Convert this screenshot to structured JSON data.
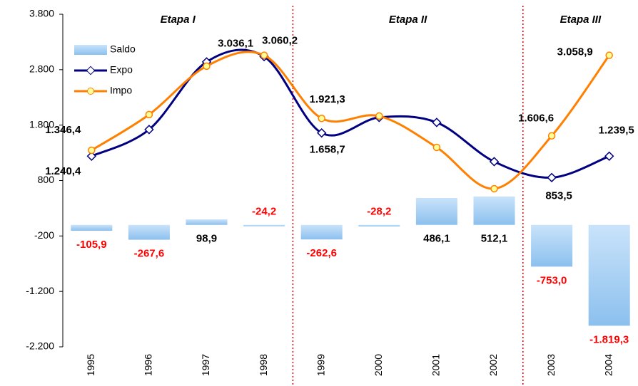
{
  "chart_data": {
    "type": "combo",
    "categories": [
      "1995",
      "1996",
      "1997",
      "1998",
      "1999",
      "2000",
      "2001",
      "2002",
      "2003",
      "2004"
    ],
    "ylim": [
      -2200,
      3800
    ],
    "yticks": [
      {
        "value": 3800,
        "label": "3.800"
      },
      {
        "value": 2800,
        "label": "2.800"
      },
      {
        "value": 1800,
        "label": "1.800"
      },
      800,
      -200,
      {
        "value": -1200,
        "label": "-1.200"
      },
      {
        "value": -2200,
        "label": "-2.200"
      }
    ],
    "legend": "upper left",
    "annotations": [
      "Etapa I",
      "Etapa II",
      "Etapa III"
    ],
    "series": [
      {
        "name": "Saldo",
        "type": "bar",
        "color": "#a8d0f4",
        "values": [
          -105.9,
          -267.6,
          98.9,
          -24.2,
          -262.6,
          -28.2,
          486.1,
          512.1,
          -753.0,
          -1819.3
        ],
        "value_labels": [
          "-105,9",
          "-267,6",
          "98,9",
          "-24,2",
          "-262,6",
          "-28,2",
          "486,1",
          "512,1",
          "-753,0",
          "-1.819,3"
        ]
      },
      {
        "name": "Expo",
        "type": "line",
        "color": "#000080",
        "values": [
          1240.4,
          1720,
          2940,
          3036.1,
          1658.7,
          1938,
          1848,
          1141,
          853.5,
          1239.5
        ],
        "value_labels": [
          "1.240,4",
          null,
          null,
          "3.036,1",
          "1.658,7",
          null,
          null,
          null,
          "853,5",
          "1.239,5"
        ]
      },
      {
        "name": "Impo",
        "type": "line",
        "color": "#ff8000",
        "values": [
          1346.4,
          1990,
          2864,
          3060.2,
          1921.3,
          1964,
          1398,
          653,
          1606.6,
          3058.9
        ],
        "value_labels": [
          "1.346,4",
          null,
          null,
          "3.060,2",
          "1.921,3",
          null,
          null,
          null,
          "1.606,6",
          "3.058,9"
        ]
      }
    ]
  }
}
